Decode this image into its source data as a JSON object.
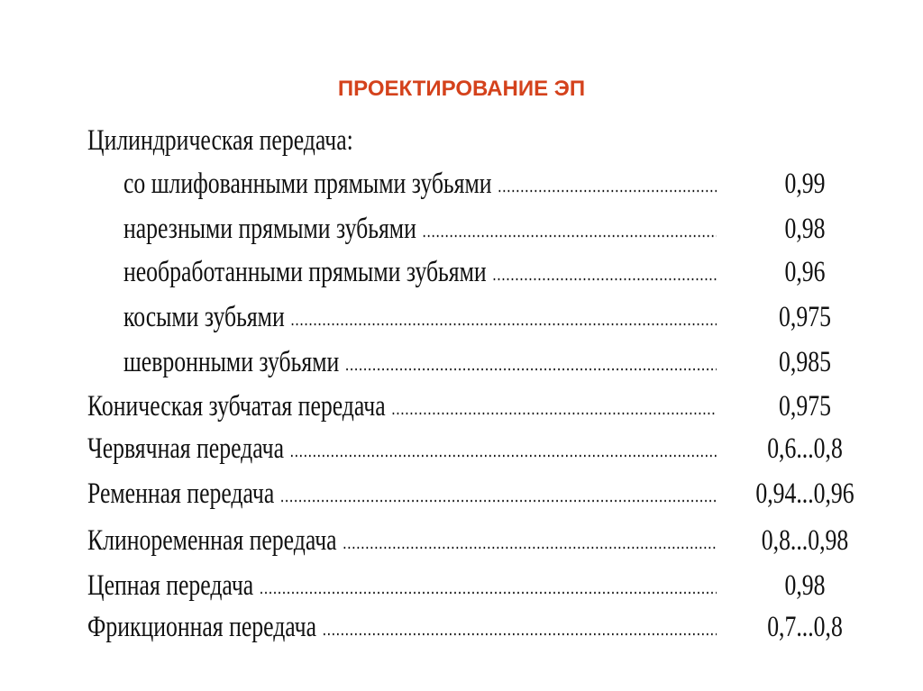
{
  "header": {
    "title": "ПРОЕКТИРОВАНИЕ ЭП"
  },
  "table": {
    "group": {
      "heading": "Цилиндрическая передача:",
      "rows": [
        [
          "со шлифованными прямыми зубьями",
          "0,99"
        ],
        [
          "нарезными прямыми зубьями",
          "0,98"
        ],
        [
          "необработанными прямыми зубьями",
          "0,96"
        ],
        [
          "косыми зубьями",
          "0,975"
        ],
        [
          "шевронными зубьями",
          "0,985"
        ]
      ]
    },
    "rows": [
      [
        "Коническая зубчатая передача",
        "0,975"
      ],
      [
        "Червячная передача",
        "0,6...0,8"
      ],
      [
        "Ременная передача",
        "0,94...0,96"
      ],
      [
        "Клиноременная передача",
        "0,8...0,98"
      ],
      [
        "Цепная передача",
        "0,98"
      ],
      [
        "Фрикционная передача",
        "0,7...0,8"
      ]
    ]
  }
}
